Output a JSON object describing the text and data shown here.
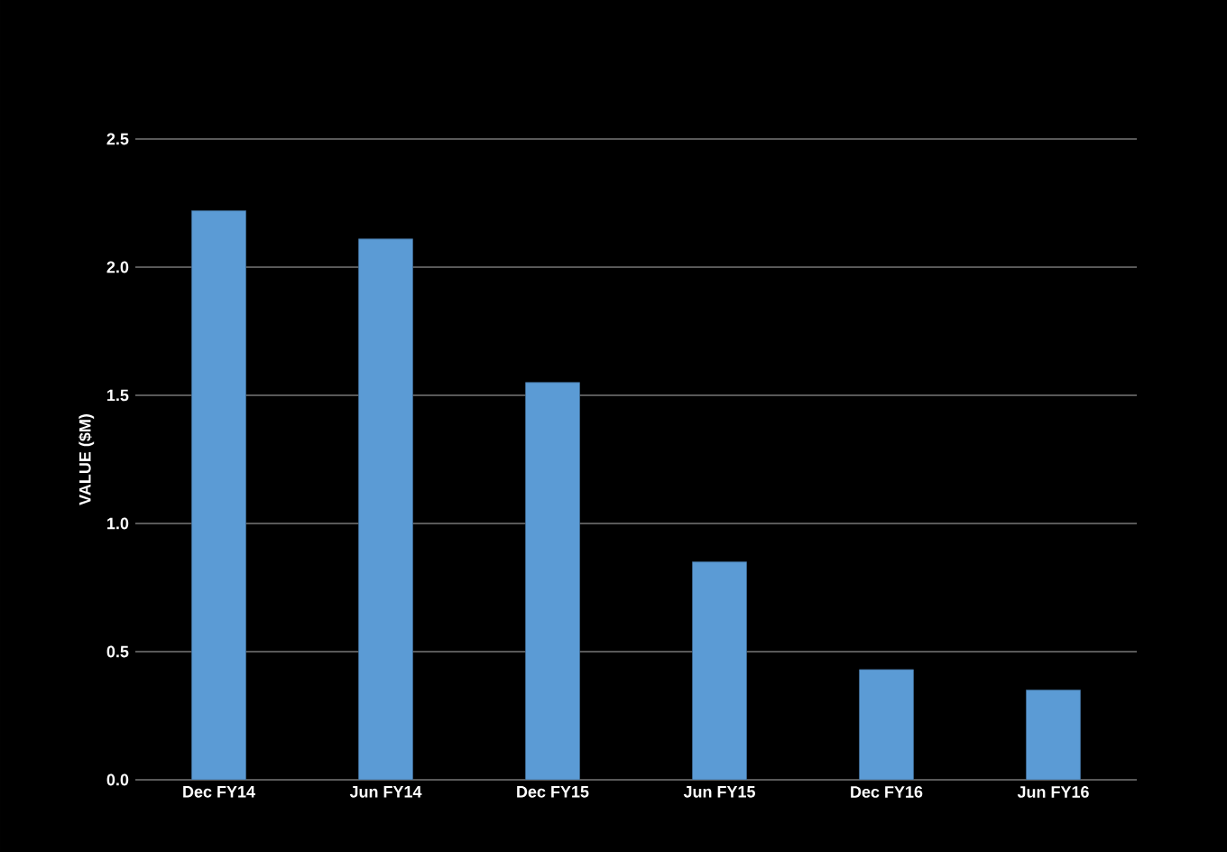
{
  "chart_data": {
    "type": "bar",
    "ylabel": "VALUE ($M)",
    "categories": [
      "Dec FY14",
      "Jun FY14",
      "Dec FY15",
      "Jun FY15",
      "Dec FY16",
      "Jun FY16"
    ],
    "values": [
      2.22,
      2.11,
      1.55,
      0.85,
      0.43,
      0.35
    ],
    "color": "#5b9bd5",
    "ylim": [
      0,
      2.5
    ],
    "yticks": [
      {
        "value": 0,
        "label": "0.0"
      },
      {
        "value": 0.5,
        "label": "0.5"
      },
      {
        "value": 1,
        "label": "1.0"
      },
      {
        "value": 1.5,
        "label": "1.5"
      },
      {
        "value": 2,
        "label": "2.0"
      },
      {
        "value": 2.5,
        "label": "2.5"
      }
    ],
    "grid": "y"
  }
}
